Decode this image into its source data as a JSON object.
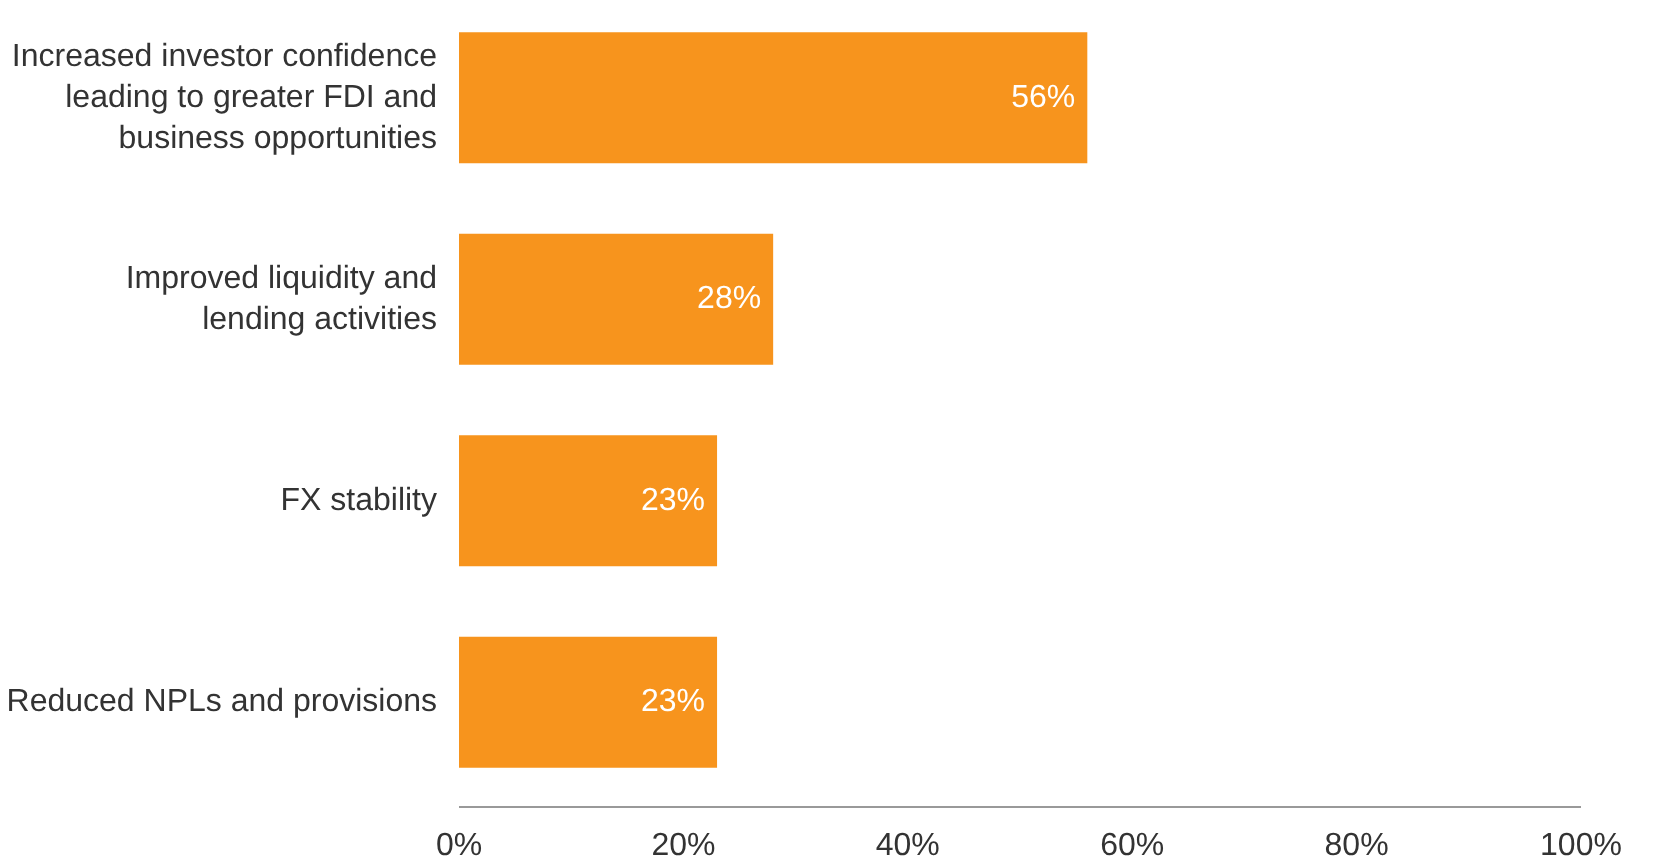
{
  "chart_data": {
    "type": "bar",
    "orientation": "horizontal",
    "categories": [
      "Increased investor confidence\nleading to greater FDI and\nbusiness opportunities",
      "Improved liquidity and\nlending activities",
      "FX stability",
      "Reduced NPLs and provisions"
    ],
    "values": [
      56,
      28,
      23,
      23
    ],
    "color": "#f7941d",
    "value_labels": [
      "56%",
      "28%",
      "23%",
      "23%"
    ],
    "xlim": [
      0,
      100
    ],
    "xticks": [
      {
        "value": 0,
        "label": "0%"
      },
      {
        "value": 20,
        "label": "20%"
      },
      {
        "value": 40,
        "label": "40%"
      },
      {
        "value": 60,
        "label": "60%"
      },
      {
        "value": 80,
        "label": "80%"
      },
      {
        "value": 100,
        "label": "100%"
      }
    ],
    "grid": false
  }
}
